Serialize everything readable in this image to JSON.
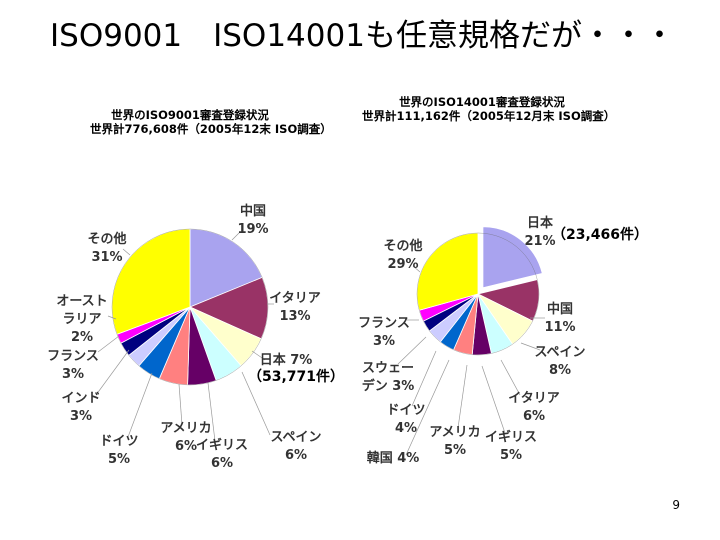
{
  "slide": {
    "title": "ISO9001　ISO14001も任意規格だが・・・",
    "page_number": "9"
  },
  "chart_data": [
    {
      "type": "pie",
      "title": "世界のISO9001審査登録状況",
      "subtitle": "世界計776,608件（2005年12末 ISO調査）",
      "annotation": "（53,771件）",
      "start_angle_deg": 0,
      "direction": "clockwise",
      "slices": [
        {
          "name": "中国",
          "label": "中国",
          "pct_label": "19%",
          "value": 19,
          "color": "#a9a3ef"
        },
        {
          "name": "イタリア",
          "label": "イタリア",
          "pct_label": "13%",
          "value": 13,
          "color": "#993366"
        },
        {
          "name": "日本",
          "label": "日本 7%",
          "pct_label": "",
          "value": 7,
          "color": "#ffffcc"
        },
        {
          "name": "スペイン",
          "label": "スペイン",
          "pct_label": "6%",
          "value": 6,
          "color": "#ccffff"
        },
        {
          "name": "イギリス",
          "label": "イギリス",
          "pct_label": "6%",
          "value": 6,
          "color": "#660066"
        },
        {
          "name": "アメリカ",
          "label": "アメリカ",
          "pct_label": "6%",
          "value": 6,
          "color": "#ff8080"
        },
        {
          "name": "ドイツ",
          "label": "ドイツ",
          "pct_label": "5%",
          "value": 5,
          "color": "#0066cc"
        },
        {
          "name": "インド",
          "label": "インド",
          "pct_label": "3%",
          "value": 3,
          "color": "#ccccff"
        },
        {
          "name": "フランス",
          "label": "フランス",
          "pct_label": "3%",
          "value": 3,
          "color": "#000080"
        },
        {
          "name": "オーストラリア",
          "label": "オースト",
          "label2": "ラリア",
          "pct_label": "2%",
          "value": 2,
          "color": "#ff00ff"
        },
        {
          "name": "その他",
          "label": "その他",
          "pct_label": "31%",
          "value": 31,
          "color": "#ffff00"
        }
      ]
    },
    {
      "type": "pie",
      "title": "世界のISO14001審査登録状況",
      "subtitle": "世界計111,162件（2005年12月末 ISO調査）",
      "annotation": "（23,466件）",
      "start_angle_deg": 0,
      "direction": "clockwise",
      "slices": [
        {
          "name": "日本",
          "label": "日本",
          "pct_label": "21%",
          "value": 21,
          "color": "#a9a3ef",
          "exploded": true
        },
        {
          "name": "中国",
          "label": "中国",
          "pct_label": "11%",
          "value": 11,
          "color": "#993366"
        },
        {
          "name": "スペイン",
          "label": "スペイン",
          "pct_label": "8%",
          "value": 8,
          "color": "#ffffcc"
        },
        {
          "name": "イタリア",
          "label": "イタリア",
          "pct_label": "6%",
          "value": 6,
          "color": "#ccffff"
        },
        {
          "name": "イギリス",
          "label": "イギリス",
          "pct_label": "5%",
          "value": 5,
          "color": "#660066"
        },
        {
          "name": "アメリカ",
          "label": "アメリカ",
          "pct_label": "5%",
          "value": 5,
          "color": "#ff8080"
        },
        {
          "name": "韓国",
          "label": "韓国 4%",
          "pct_label": "",
          "value": 4,
          "color": "#0066cc"
        },
        {
          "name": "ドイツ",
          "label": "ドイツ",
          "pct_label": "4%",
          "value": 4,
          "color": "#ccccff"
        },
        {
          "name": "スウェーデン",
          "label": "スウェー",
          "label2": "デン 3%",
          "pct_label": "",
          "value": 3,
          "color": "#000080"
        },
        {
          "name": "フランス",
          "label": "フランス",
          "pct_label": "3%",
          "value": 3,
          "color": "#ff00ff"
        },
        {
          "name": "その他",
          "label": "その他",
          "pct_label": "29%",
          "value": 29,
          "color": "#ffff00"
        }
      ]
    }
  ]
}
